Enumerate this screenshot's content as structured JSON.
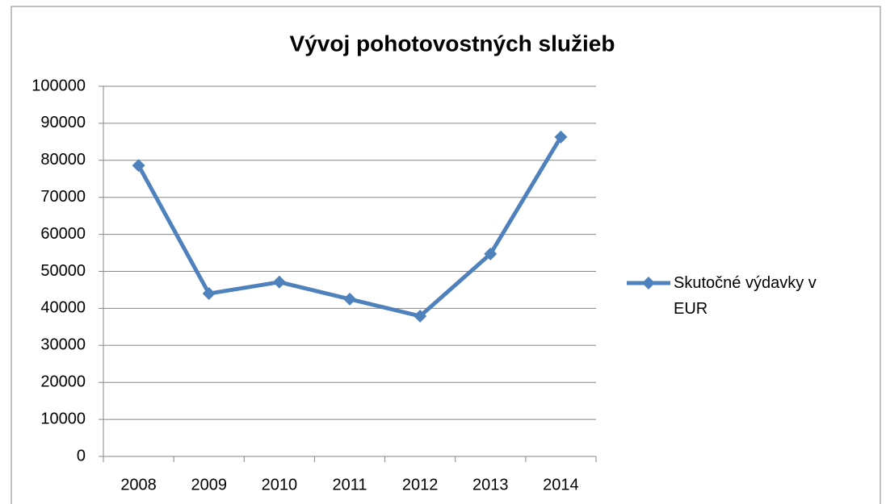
{
  "chart_data": {
    "type": "line",
    "title": "Vývoj pohotovostných služieb",
    "categories": [
      "2008",
      "2009",
      "2010",
      "2011",
      "2012",
      "2013",
      "2014"
    ],
    "series": [
      {
        "name": "Skutočné výdavky v EUR",
        "color": "#4f81bd",
        "values": [
          78600,
          44000,
          47100,
          42500,
          37900,
          54700,
          86300
        ]
      }
    ],
    "ylim": [
      0,
      100000
    ],
    "yticks": [
      0,
      10000,
      20000,
      30000,
      40000,
      50000,
      60000,
      70000,
      80000,
      90000,
      100000
    ],
    "grid": true,
    "legend": "right"
  }
}
